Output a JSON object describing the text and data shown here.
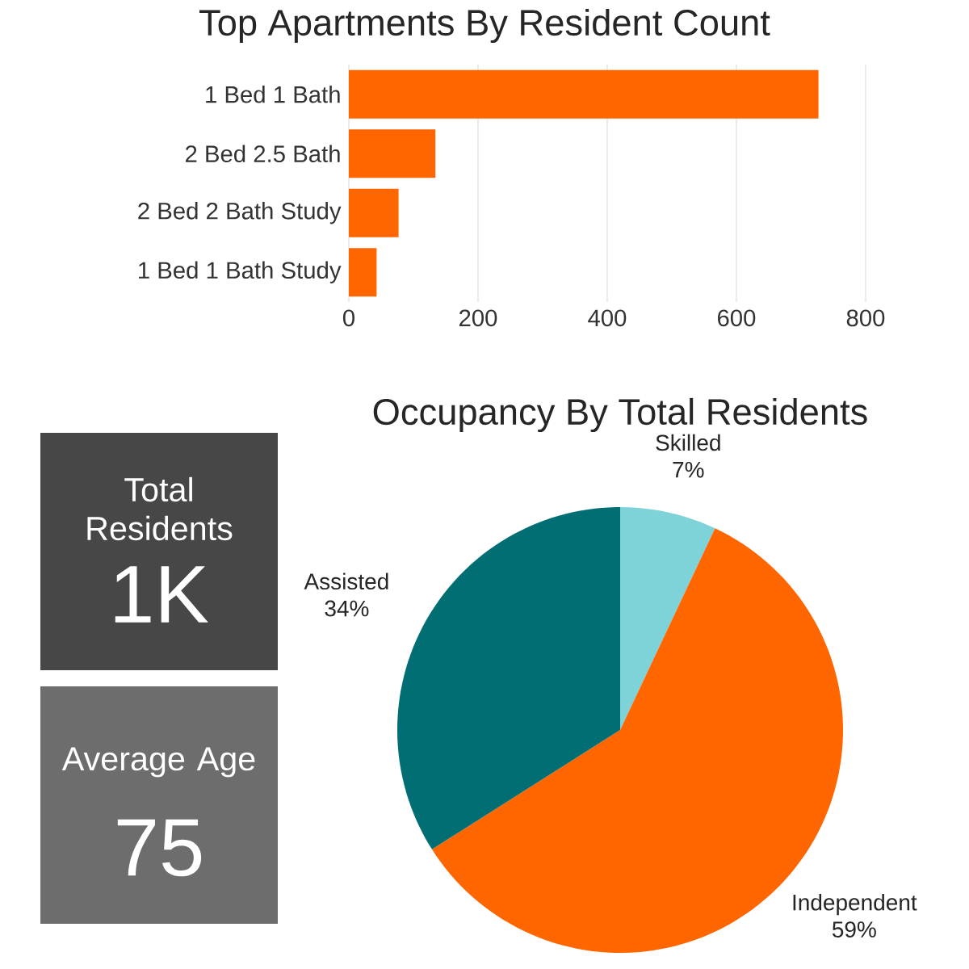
{
  "chart_data": [
    {
      "type": "bar",
      "orientation": "horizontal",
      "title": "Top Apartments By Resident Count",
      "categories": [
        "1 Bed 1 Bath",
        "2 Bed 2.5 Bath",
        "2 Bed 2 Bath Study",
        "1 Bed 1 Bath Study"
      ],
      "values": [
        727,
        134,
        77,
        43
      ],
      "color": "#ff6600",
      "xlim": [
        0,
        800
      ],
      "xticks": [
        0,
        200,
        400,
        600,
        800
      ],
      "grid": "x"
    },
    {
      "type": "other",
      "title": "Total Residents",
      "annotations": [
        "1K"
      ],
      "color": "#474747"
    },
    {
      "type": "other",
      "title": "Average Age",
      "annotations": [
        "75"
      ],
      "color": "#6d6d6d"
    },
    {
      "type": "pie",
      "title": "Occupancy By Total Residents",
      "categories": [
        "Skilled",
        "Independent",
        "Assisted"
      ],
      "values": [
        7,
        59,
        34
      ],
      "value_labels": [
        "7%",
        "59%",
        "34%"
      ],
      "colors": [
        "#7dd3d8",
        "#ff6600",
        "#006e73"
      ]
    }
  ]
}
